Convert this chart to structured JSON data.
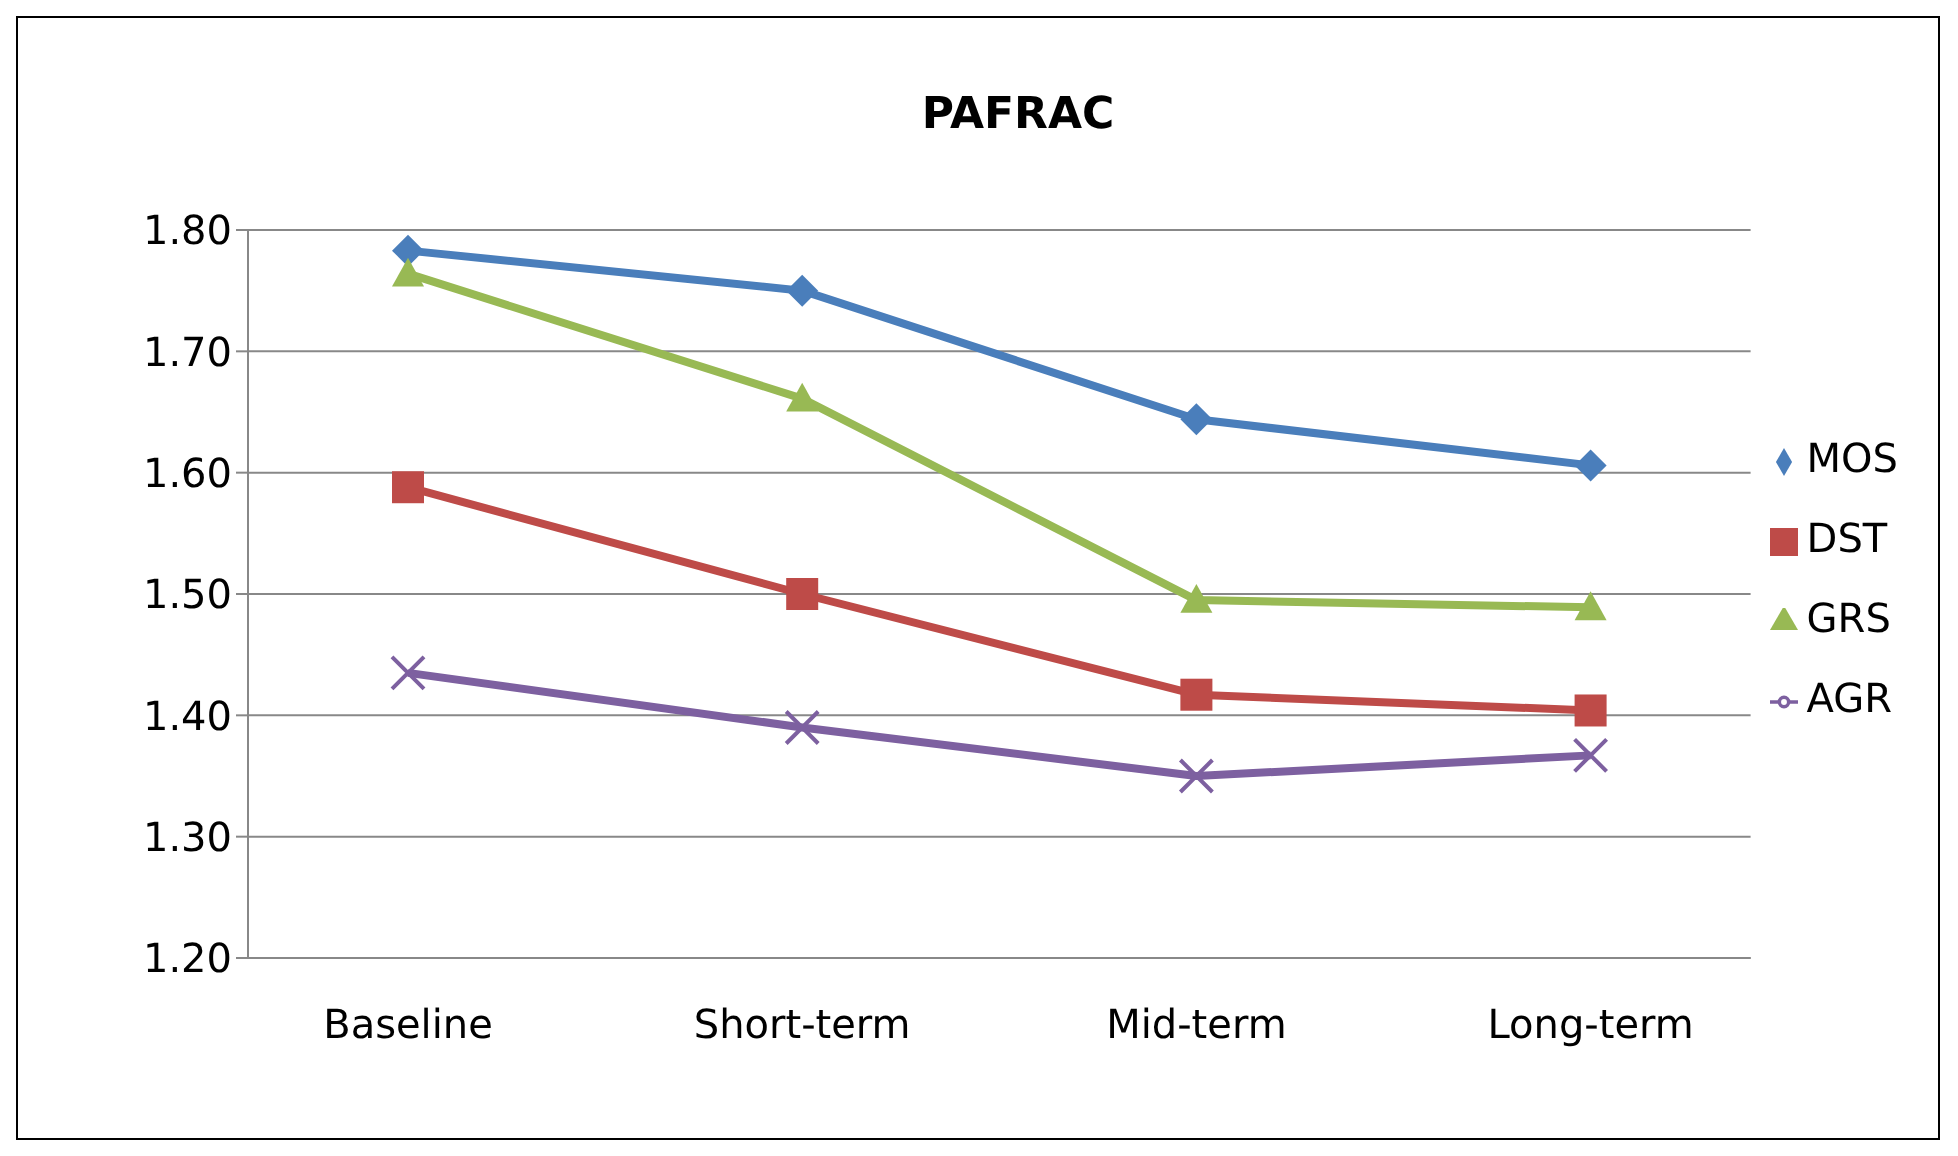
{
  "chart_data": {
    "type": "line",
    "title": "PAFRAC",
    "categories": [
      "Baseline",
      "Short-term",
      "Mid-term",
      "Long-term"
    ],
    "series": [
      {
        "name": "MOS",
        "color": "#4a7ebb",
        "marker": "diamond",
        "values": [
          1.783,
          1.75,
          1.644,
          1.606
        ]
      },
      {
        "name": "DST",
        "color": "#be4b48",
        "marker": "square",
        "values": [
          1.588,
          1.5,
          1.417,
          1.404
        ]
      },
      {
        "name": "GRS",
        "color": "#98b954",
        "marker": "triangle",
        "values": [
          1.764,
          1.661,
          1.495,
          1.489
        ]
      },
      {
        "name": "AGR",
        "color": "#7d60a0",
        "marker": "cross",
        "values": [
          1.435,
          1.39,
          1.35,
          1.367
        ]
      }
    ],
    "ylim": [
      1.2,
      1.8
    ],
    "yticks": [
      {
        "value": 1.2,
        "label": "1.20"
      },
      {
        "value": 1.3,
        "label": "1.30"
      },
      {
        "value": 1.4,
        "label": "1.40"
      },
      {
        "value": 1.5,
        "label": "1.50"
      },
      {
        "value": 1.6,
        "label": "1.60"
      },
      {
        "value": 1.7,
        "label": "1.70"
      },
      {
        "value": 1.8,
        "label": "1.80"
      }
    ],
    "grid": "y",
    "legend": "right"
  }
}
